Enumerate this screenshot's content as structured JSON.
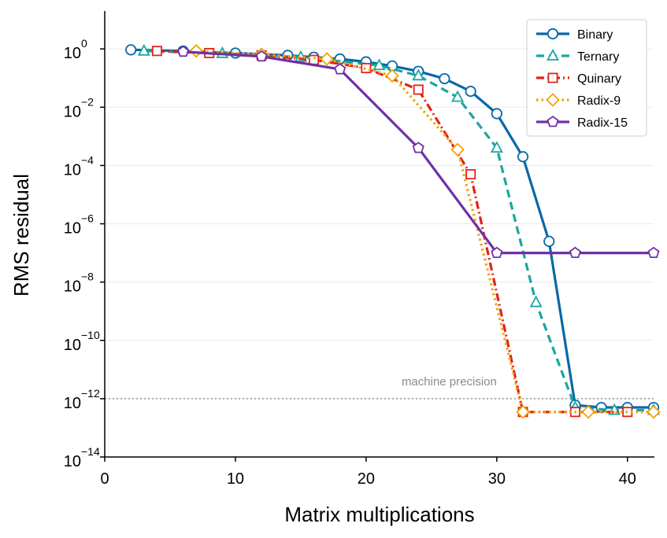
{
  "chart_data": {
    "type": "line",
    "xlabel": "Matrix multiplications",
    "ylabel": "RMS residual",
    "xlim": [
      0,
      42
    ],
    "ylim_exponent": [
      -14,
      1.3
    ],
    "yscale": "log",
    "x_ticks": [
      0,
      10,
      20,
      30,
      40
    ],
    "y_tick_exponents": [
      -14,
      -12,
      -10,
      -8,
      -6,
      -4,
      -2,
      0
    ],
    "y_tick_base": "10",
    "grid": "horizontal, light",
    "legend_position": "top-right",
    "reference_line": {
      "y": 1e-12,
      "label": "machine precision",
      "color": "#999999"
    },
    "series": [
      {
        "name": "Binary",
        "color": "#0868a8",
        "marker": "circle",
        "dash": "solid",
        "x": [
          2,
          6,
          10,
          14,
          16,
          18,
          20,
          22,
          24,
          26,
          28,
          30,
          32,
          34,
          36,
          38,
          40,
          42
        ],
        "y": [
          0.93,
          0.85,
          0.72,
          0.6,
          0.52,
          0.45,
          0.36,
          0.26,
          0.17,
          0.095,
          0.035,
          0.006,
          0.0002,
          2.5e-07,
          6e-13,
          5e-13,
          5e-13,
          5e-13
        ]
      },
      {
        "name": "Ternary",
        "color": "#1aa6a0",
        "marker": "triangle",
        "dash": "dashed",
        "x": [
          3,
          9,
          15,
          21,
          24,
          27,
          30,
          33,
          36,
          39,
          42
        ],
        "y": [
          0.85,
          0.7,
          0.52,
          0.27,
          0.12,
          0.022,
          0.0004,
          2e-09,
          5e-13,
          4e-13,
          4e-13
        ]
      },
      {
        "name": "Quinary",
        "color": "#e0231b",
        "marker": "square",
        "dash": "dashdot",
        "x": [
          4,
          8,
          12,
          16,
          20,
          24,
          28,
          32,
          36,
          40
        ],
        "y": [
          0.85,
          0.72,
          0.6,
          0.42,
          0.22,
          0.04,
          5e-05,
          3.5e-13,
          3.5e-13,
          3.5e-13
        ]
      },
      {
        "name": "Radix-9",
        "color": "#f5a100",
        "marker": "diamond",
        "dash": "dotted",
        "x": [
          7,
          12,
          17,
          22,
          27,
          32,
          37,
          42
        ],
        "y": [
          0.85,
          0.65,
          0.45,
          0.12,
          0.00035,
          3.5e-13,
          3.5e-13,
          3.5e-13
        ]
      },
      {
        "name": "Radix-15",
        "color": "#7030a8",
        "marker": "pentagon",
        "dash": "solid",
        "x": [
          6,
          12,
          18,
          24,
          30,
          36,
          42
        ],
        "y": [
          0.8,
          0.55,
          0.2,
          0.0004,
          1e-07,
          1e-07,
          1e-07
        ]
      }
    ]
  }
}
